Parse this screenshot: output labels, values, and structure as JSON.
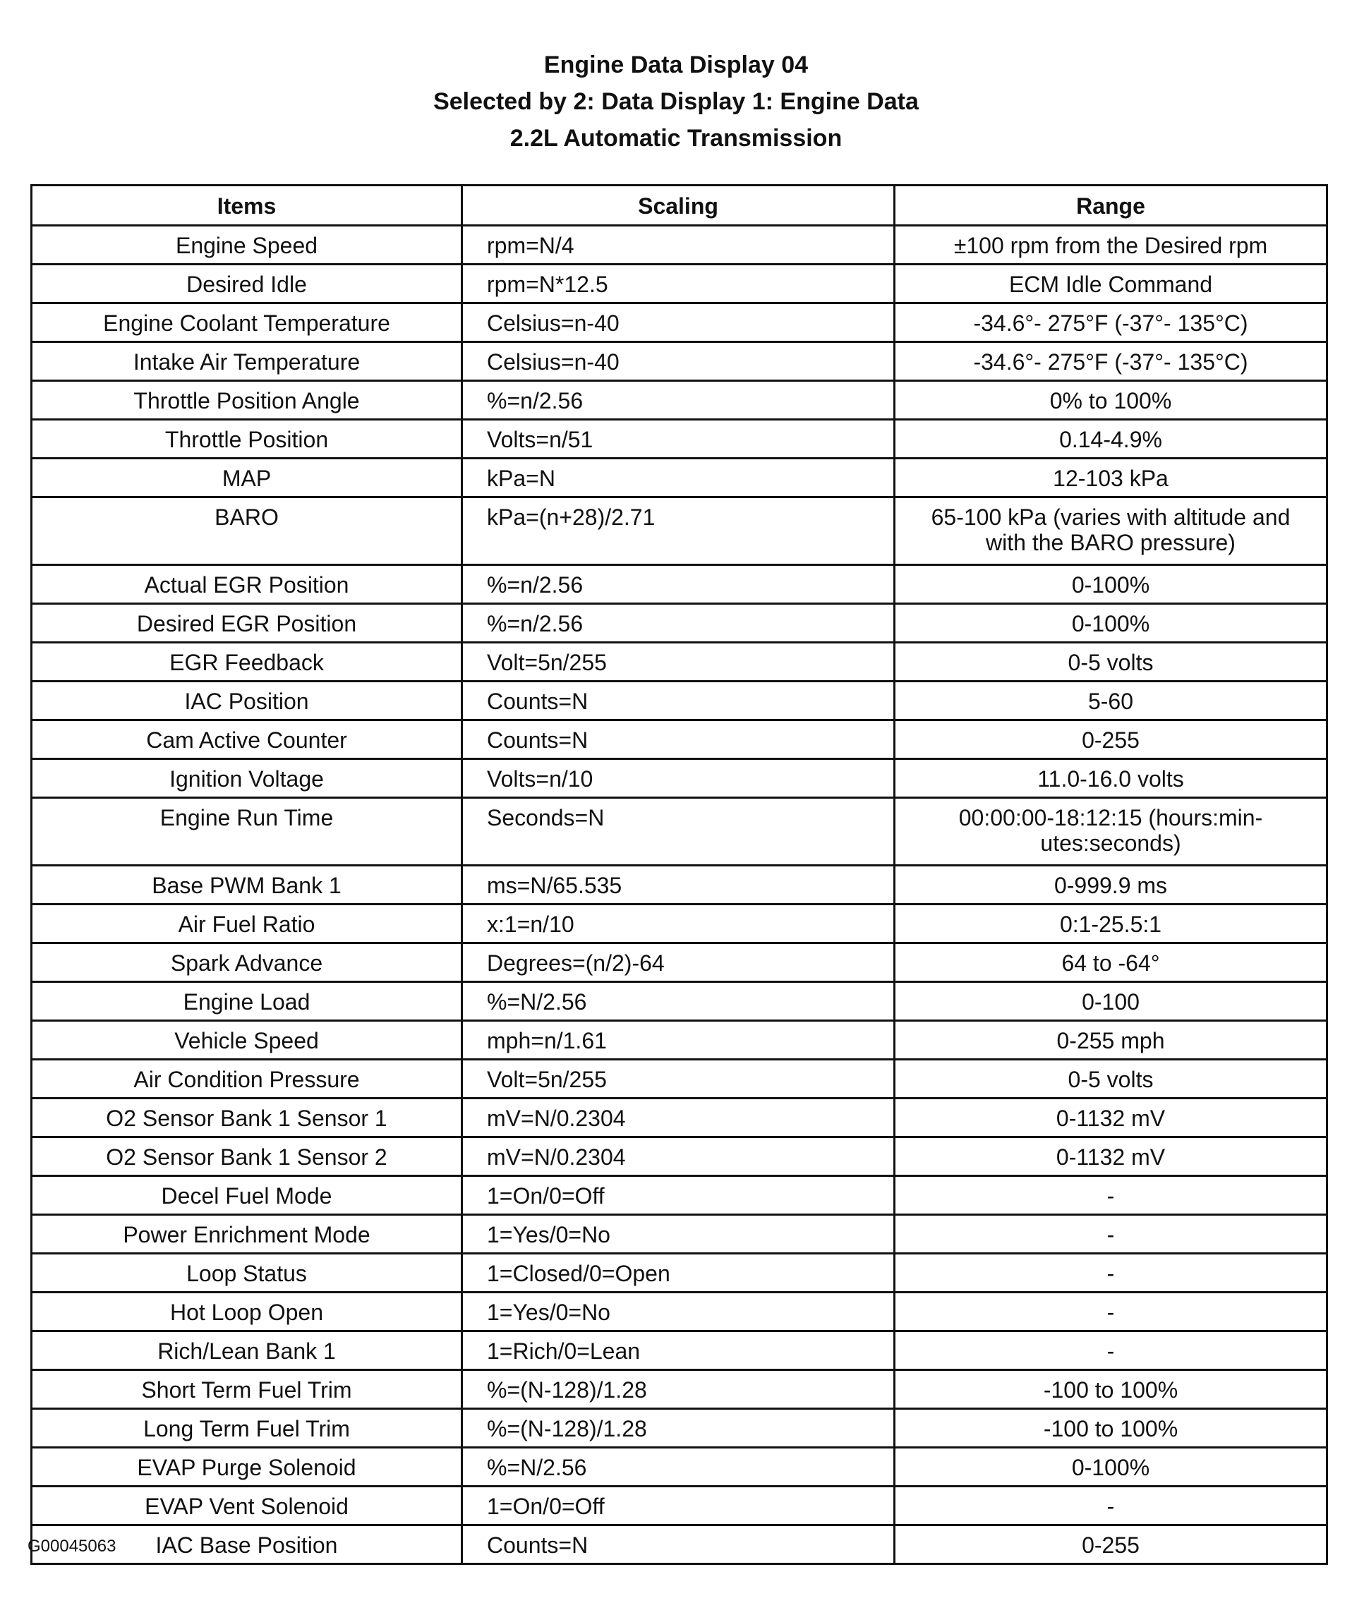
{
  "title": {
    "line1": "Engine Data Display 04",
    "line2": "Selected by 2: Data Display 1: Engine Data",
    "line3": "2.2L Automatic Transmission"
  },
  "table": {
    "headers": [
      "Items",
      "Scaling",
      "Range"
    ],
    "rows": [
      {
        "item": "Engine Speed",
        "scaling": "rpm=N/4",
        "range": "±100 rpm from the Desired rpm"
      },
      {
        "item": "Desired Idle",
        "scaling": "rpm=N*12.5",
        "range": "ECM Idle Command"
      },
      {
        "item": "Engine Coolant Temperature",
        "scaling": "Celsius=n-40",
        "range": "-34.6°- 275°F (-37°- 135°C)"
      },
      {
        "item": "Intake Air Temperature",
        "scaling": "Celsius=n-40",
        "range": "-34.6°- 275°F (-37°- 135°C)"
      },
      {
        "item": "Throttle Position Angle",
        "scaling": "%=n/2.56",
        "range": "0% to 100%"
      },
      {
        "item": "Throttle Position",
        "scaling": "Volts=n/51",
        "range": "0.14-4.9%"
      },
      {
        "item": "MAP",
        "scaling": "kPa=N",
        "range": "12-103 kPa"
      },
      {
        "item": "BARO",
        "scaling": "kPa=(n+28)/2.71",
        "range": "65-100 kPa (varies with altitude and\nwith the BARO pressure)"
      },
      {
        "item": "Actual EGR Position",
        "scaling": "%=n/2.56",
        "range": "0-100%"
      },
      {
        "item": "Desired EGR Position",
        "scaling": "%=n/2.56",
        "range": "0-100%"
      },
      {
        "item": "EGR Feedback",
        "scaling": "Volt=5n/255",
        "range": "0-5 volts"
      },
      {
        "item": "IAC Position",
        "scaling": "Counts=N",
        "range": "5-60"
      },
      {
        "item": "Cam Active Counter",
        "scaling": "Counts=N",
        "range": "0-255"
      },
      {
        "item": "Ignition Voltage",
        "scaling": "Volts=n/10",
        "range": "11.0-16.0 volts"
      },
      {
        "item": "Engine Run Time",
        "scaling": "Seconds=N",
        "range": "00:00:00-18:12:15 (hours:min-\nutes:seconds)"
      },
      {
        "item": "Base PWM Bank 1",
        "scaling": "ms=N/65.535",
        "range": "0-999.9 ms"
      },
      {
        "item": "Air Fuel Ratio",
        "scaling": "x:1=n/10",
        "range": "0:1-25.5:1"
      },
      {
        "item": "Spark Advance",
        "scaling": "Degrees=(n/2)-64",
        "range": "64 to -64°"
      },
      {
        "item": "Engine Load",
        "scaling": "%=N/2.56",
        "range": "0-100"
      },
      {
        "item": "Vehicle Speed",
        "scaling": "mph=n/1.61",
        "range": "0-255 mph"
      },
      {
        "item": "Air Condition Pressure",
        "scaling": "Volt=5n/255",
        "range": "0-5 volts"
      },
      {
        "item": "O2 Sensor Bank 1 Sensor 1",
        "scaling": "mV=N/0.2304",
        "range": "0-1132 mV"
      },
      {
        "item": "O2 Sensor Bank 1 Sensor 2",
        "scaling": "mV=N/0.2304",
        "range": "0-1132 mV"
      },
      {
        "item": "Decel Fuel Mode",
        "scaling": "1=On/0=Off",
        "range": "-"
      },
      {
        "item": "Power Enrichment Mode",
        "scaling": "1=Yes/0=No",
        "range": "-"
      },
      {
        "item": "Loop Status",
        "scaling": "1=Closed/0=Open",
        "range": "-"
      },
      {
        "item": "Hot Loop Open",
        "scaling": "1=Yes/0=No",
        "range": "-"
      },
      {
        "item": "Rich/Lean Bank 1",
        "scaling": "1=Rich/0=Lean",
        "range": "-"
      },
      {
        "item": "Short Term Fuel Trim",
        "scaling": "%=(N-128)/1.28",
        "range": "-100 to 100%"
      },
      {
        "item": "Long Term Fuel Trim",
        "scaling": "%=(N-128)/1.28",
        "range": "-100 to 100%"
      },
      {
        "item": "EVAP Purge Solenoid",
        "scaling": "%=N/2.56",
        "range": "0-100%"
      },
      {
        "item": "EVAP Vent Solenoid",
        "scaling": "1=On/0=Off",
        "range": "-"
      },
      {
        "item": "IAC Base Position",
        "scaling": "Counts=N",
        "range": "0-255"
      }
    ]
  },
  "footer": {
    "figure_id": "G00045063"
  }
}
